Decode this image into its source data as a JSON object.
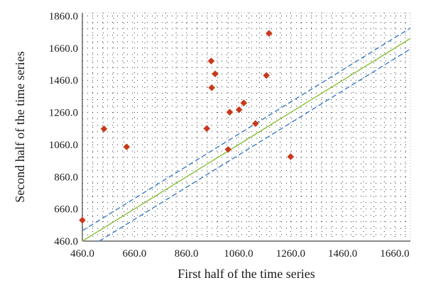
{
  "chart_data": {
    "type": "scatter",
    "title": "",
    "xlabel": "First half of the time series",
    "ylabel": "Second half of the time series",
    "xlim": [
      460,
      1720
    ],
    "ylim": [
      460,
      1880
    ],
    "xticks": [
      "460.0",
      "660.0",
      "860.0",
      "1060.0",
      "1260.0",
      "1460.0",
      "1660.0"
    ],
    "yticks": [
      "460.0",
      "660.0",
      "860.0",
      "1060.0",
      "1260.0",
      "1460.0",
      "1660.0",
      "1860.0"
    ],
    "grid": true,
    "grid_style": "dotted",
    "series": [
      {
        "marker": "diamond",
        "color": "#c8391b",
        "points": [
          {
            "x": 460,
            "y": 590
          },
          {
            "x": 543,
            "y": 1158
          },
          {
            "x": 630,
            "y": 1046
          },
          {
            "x": 938,
            "y": 1160
          },
          {
            "x": 955,
            "y": 1580
          },
          {
            "x": 957,
            "y": 1414
          },
          {
            "x": 970,
            "y": 1500
          },
          {
            "x": 1020,
            "y": 1030
          },
          {
            "x": 1026,
            "y": 1262
          },
          {
            "x": 1062,
            "y": 1277
          },
          {
            "x": 1080,
            "y": 1319
          },
          {
            "x": 1125,
            "y": 1191
          },
          {
            "x": 1167,
            "y": 1490
          },
          {
            "x": 1177,
            "y": 1752
          },
          {
            "x": 1260,
            "y": 985
          }
        ]
      }
    ],
    "reference_lines": [
      {
        "kind": "identity",
        "color": "#8bbf3a",
        "style": "solid"
      },
      {
        "kind": "upper_band",
        "color": "#3a7dc9",
        "style": "dashed"
      },
      {
        "kind": "lower_band",
        "color": "#3a7dc9",
        "style": "dashed"
      }
    ]
  }
}
